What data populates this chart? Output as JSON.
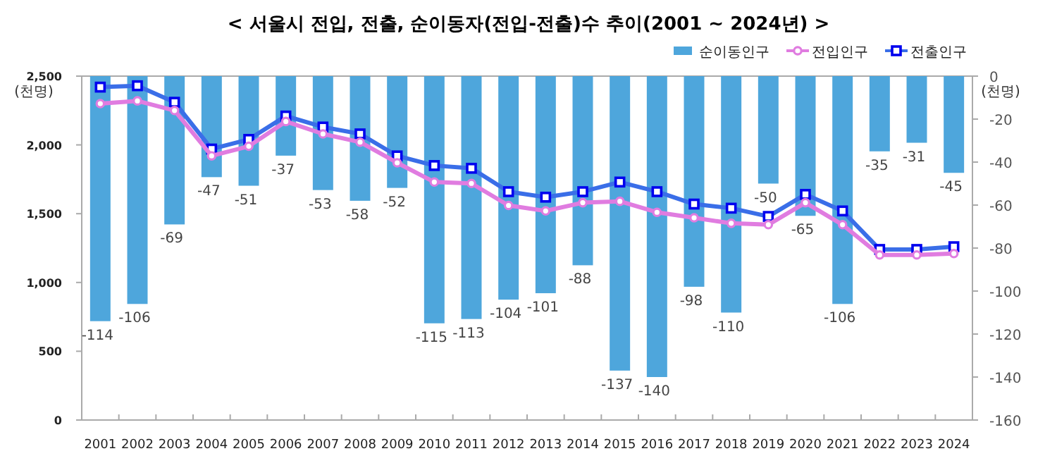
{
  "chart_data": {
    "type": "bar",
    "title": "< 서울시 전입, 전출, 순이동자(전입-전출)수 추이(2001 ~ 2024년) >",
    "ylabel": "(천명)",
    "y2label": "(천명)",
    "categories": [
      "2001",
      "2002",
      "2003",
      "2004",
      "2005",
      "2006",
      "2007",
      "2008",
      "2009",
      "2010",
      "2011",
      "2012",
      "2013",
      "2014",
      "2015",
      "2016",
      "2017",
      "2018",
      "2019",
      "2020",
      "2021",
      "2022",
      "2023",
      "2024"
    ],
    "ylim": [
      0,
      2500
    ],
    "yticks": [
      0,
      500,
      {
        "value": 1000,
        "label": "1,000"
      },
      {
        "value": 1500,
        "label": "1,500"
      },
      {
        "value": 2000,
        "label": "2,000"
      },
      {
        "value": 2500,
        "label": "2,500"
      }
    ],
    "y2lim": [
      -160,
      0
    ],
    "y2ticks": [
      -160,
      -140,
      -120,
      -100,
      -80,
      -60,
      -40,
      -20,
      0
    ],
    "legend": "top right",
    "series": [
      {
        "name": "순이동인구",
        "axis": "y2",
        "color": "#4ea6dc",
        "values": [
          -114,
          -106,
          -69,
          -47,
          -51,
          -37,
          -53,
          -58,
          -52,
          -115,
          -113,
          -104,
          -101,
          -88,
          -137,
          -140,
          -98,
          -110,
          -50,
          -65,
          -106,
          -35,
          -31,
          -45
        ],
        "value_labels": [
          "-114",
          "-106",
          "-69",
          "-47",
          "-51",
          "-37",
          "-53",
          "-58",
          "-52",
          "-115",
          "-113",
          "-104",
          "-101",
          "-88",
          "-137",
          "-140",
          "-98",
          "-110",
          "-50",
          "-65",
          "-106",
          "-35",
          "-31",
          "-45"
        ]
      },
      {
        "name": "전입인구",
        "type": "line",
        "color": "#e07ce0",
        "marker": "circle",
        "line_style": "solid",
        "values": [
          2300,
          2320,
          2250,
          1920,
          1990,
          2170,
          2080,
          2020,
          1870,
          1730,
          1720,
          1560,
          1520,
          1580,
          1590,
          1510,
          1470,
          1430,
          1420,
          1580,
          1420,
          1200,
          1200,
          1210
        ]
      },
      {
        "name": "전출인구",
        "type": "line",
        "color": "#3a6ee8",
        "marker": "square",
        "line_style": "solid",
        "values": [
          2420,
          2430,
          2310,
          1970,
          2040,
          2210,
          2130,
          2080,
          1920,
          1850,
          1830,
          1660,
          1620,
          1660,
          1730,
          1660,
          1570,
          1540,
          1480,
          1640,
          1520,
          1240,
          1240,
          1260
        ]
      }
    ]
  }
}
